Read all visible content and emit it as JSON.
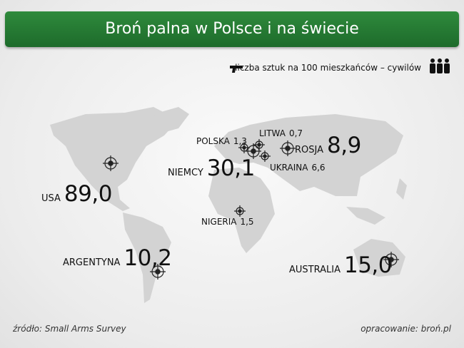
{
  "header": {
    "title": "Broń palna w Polsce i na świecie"
  },
  "legend": {
    "text": "liczba sztuk na 100 mieszkańców – cywilów"
  },
  "countries": [
    {
      "name": "USA",
      "value": "89,0"
    },
    {
      "name": "ARGENTYNA",
      "value": "10,2"
    },
    {
      "name": "NIEMCY",
      "value": "30,1"
    },
    {
      "name": "POLSKA",
      "value": "1,3"
    },
    {
      "name": "LITWA",
      "value": "0,7"
    },
    {
      "name": "ROSJA",
      "value": "8,9"
    },
    {
      "name": "UKRAINA",
      "value": "6,6"
    },
    {
      "name": "NIGERIA",
      "value": "1,5"
    },
    {
      "name": "AUSTRALIA",
      "value": "15,0"
    }
  ],
  "footer": {
    "source": "źródło: Small Arms Survey",
    "author": "opracowanie: broń.pl"
  }
}
